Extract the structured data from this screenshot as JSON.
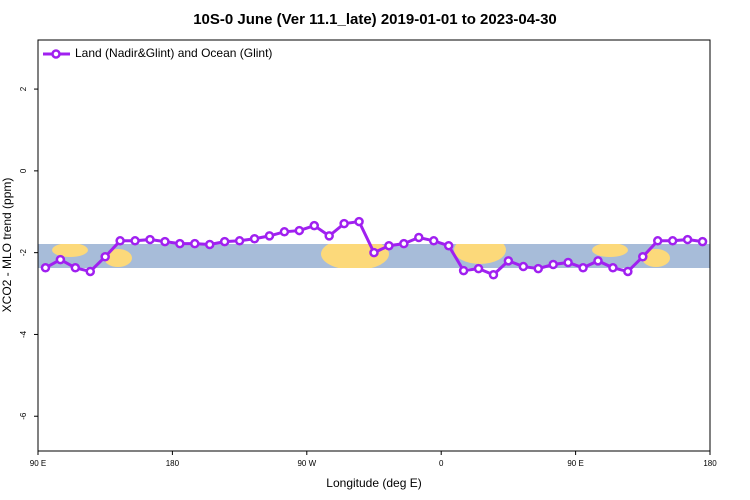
{
  "chart_data": {
    "type": "line",
    "title": "10S-0 June (Ver 11.1_late)   2019-01-01 to 2023-04-30",
    "x_label": "Longitude (deg E)",
    "y_label": "XCO2 - MLO trend (ppm)",
    "xlim": [
      90,
      540
    ],
    "xticks": [
      {
        "value": 90,
        "label": "90 E"
      },
      {
        "value": 180,
        "label": "180"
      },
      {
        "value": 270,
        "label": "90 W"
      },
      {
        "value": 360,
        "label": "0"
      },
      {
        "value": 450,
        "label": "90 E"
      },
      {
        "value": 540,
        "label": "180"
      }
    ],
    "ylim": [
      -6.85,
      3.2
    ],
    "yticks": [
      2,
      0,
      -2,
      -4,
      -6
    ],
    "legend": "top-left",
    "x": [
      95,
      105,
      115,
      125,
      135,
      145,
      155,
      165,
      175,
      185,
      195,
      205,
      215,
      225,
      235,
      245,
      255,
      265,
      275,
      285,
      295,
      305,
      315,
      325,
      335,
      345,
      355,
      365,
      375,
      385,
      395,
      405,
      415,
      425,
      435,
      445,
      455,
      465,
      475,
      485,
      495,
      505,
      515,
      525,
      535
    ],
    "series": [
      {
        "name": "Land (Nadir&Glint) and Ocean (Glint)",
        "color": "#a020f0",
        "values": [
          -2.37,
          -2.17,
          -2.37,
          -2.46,
          -2.1,
          -1.71,
          -1.71,
          -1.68,
          -1.73,
          -1.78,
          -1.78,
          -1.8,
          -1.73,
          -1.71,
          -1.66,
          -1.59,
          -1.49,
          -1.46,
          -1.34,
          -1.59,
          -1.29,
          -1.24,
          -2.0,
          -1.83,
          -1.78,
          -1.63,
          -1.71,
          -1.83,
          -2.44,
          -2.39,
          -2.54,
          -2.2,
          -2.34,
          -2.39,
          -2.29,
          -2.24,
          -2.37,
          -2.2,
          -2.37,
          -2.46,
          -2.1,
          -1.71,
          -1.71,
          -1.68,
          -1.73
        ]
      }
    ]
  }
}
